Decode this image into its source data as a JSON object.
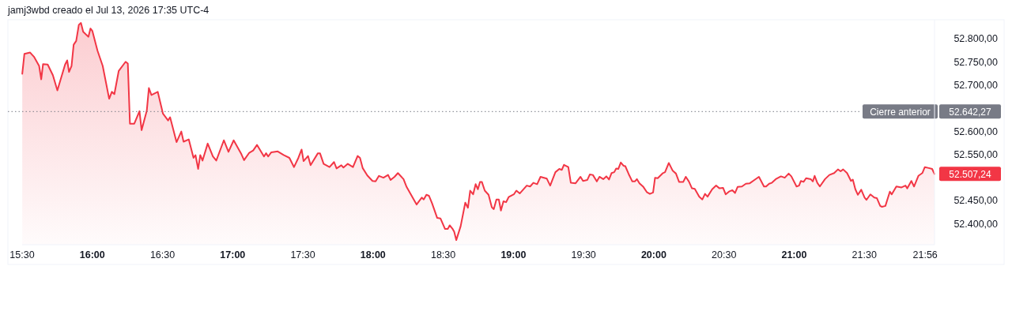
{
  "chart_data": {
    "type": "area",
    "title": "jamj3wbd creado el Jul 13, 2026 17:35 UTC-4",
    "xlim": [
      15.5,
      22.0
    ],
    "xticks": [
      {
        "value": 15.5,
        "label": "15:30"
      },
      {
        "value": 16,
        "label": "16:00"
      },
      {
        "value": 16.5,
        "label": "16:30"
      },
      {
        "value": 17,
        "label": "17:00"
      },
      {
        "value": 17.5,
        "label": "17:30"
      },
      {
        "value": 18,
        "label": "18:00"
      },
      {
        "value": 18.5,
        "label": "18:30"
      },
      {
        "value": 19,
        "label": "19:00"
      },
      {
        "value": 19.5,
        "label": "19:30"
      },
      {
        "value": 20,
        "label": "20:00"
      },
      {
        "value": 20.5,
        "label": "20:30"
      },
      {
        "value": 21,
        "label": "21:00"
      },
      {
        "value": 21.5,
        "label": "21:30"
      },
      {
        "value": 21.9333,
        "label": "21:56"
      }
    ],
    "ylim": [
      52354,
      52841
    ],
    "yticks": [
      {
        "value": 52400,
        "label": "52.400,00"
      },
      {
        "value": 52450,
        "label": "52.450,00"
      },
      {
        "value": 52550,
        "label": "52.550,00"
      },
      {
        "value": 52600,
        "label": "52.600,00"
      },
      {
        "value": 52700,
        "label": "52.700,00"
      },
      {
        "value": 52750,
        "label": "52.750,00"
      },
      {
        "value": 52800,
        "label": "52.800,00"
      }
    ],
    "ref_lines": [
      {
        "axis": "y",
        "value": 52642.27,
        "label": "Cierre anterior",
        "color": "#787b86",
        "line_style": "dotted"
      }
    ],
    "annotations": [
      "52.642,27",
      {
        "text": "52.507,24",
        "x": 22.0,
        "y": 52507.24
      }
    ],
    "series": [
      {
        "color": "#f23645",
        "x": [
          15.501,
          15.516,
          15.557,
          15.584,
          15.621,
          15.636,
          15.649,
          15.682,
          15.719,
          15.751,
          15.806,
          15.821,
          15.834,
          15.852,
          15.867,
          15.885,
          15.904,
          15.919,
          15.935,
          15.972,
          15.987,
          16.0,
          16.037,
          16.074,
          16.12,
          16.139,
          16.157,
          16.188,
          16.237,
          16.253,
          16.268,
          16.299,
          16.336,
          16.351,
          16.388,
          16.403,
          16.421,
          16.466,
          16.503,
          16.54,
          16.554,
          16.6,
          16.634,
          16.65,
          16.687,
          16.721,
          16.735,
          16.754,
          16.769,
          16.785,
          16.822,
          16.859,
          16.883,
          16.937,
          16.97,
          17.007,
          17.062,
          17.081,
          17.118,
          17.146,
          17.173,
          17.223,
          17.238,
          17.253,
          17.275,
          17.321,
          17.363,
          17.404,
          17.437,
          17.468,
          17.491,
          17.505,
          17.537,
          17.555,
          17.607,
          17.622,
          17.648,
          17.69,
          17.722,
          17.74,
          17.774,
          17.789,
          17.82,
          17.857,
          17.89,
          17.907,
          17.926,
          17.959,
          17.996,
          18.018,
          18.042,
          18.074,
          18.107,
          18.125,
          18.153,
          18.177,
          18.217,
          18.239,
          18.282,
          18.31,
          18.347,
          18.361,
          18.38,
          18.398,
          18.42,
          18.457,
          18.48,
          18.513,
          18.532,
          18.546,
          18.565,
          18.578,
          18.593,
          18.624,
          18.657,
          18.676,
          18.692,
          18.713,
          18.731,
          18.747,
          18.762,
          18.775,
          18.796,
          18.823,
          18.846,
          18.86,
          18.879,
          18.896,
          18.911,
          18.929,
          18.948,
          18.966,
          19.003,
          19.021,
          19.045,
          19.095,
          19.119,
          19.142,
          19.169,
          19.193,
          19.238,
          19.262,
          19.299,
          19.327,
          19.345,
          19.36,
          19.391,
          19.409,
          19.443,
          19.478,
          19.496,
          19.526,
          19.544,
          19.566,
          19.594,
          19.613,
          19.64,
          19.662,
          19.681,
          19.699,
          19.718,
          19.732,
          19.747,
          19.765,
          19.784,
          19.797,
          19.821,
          19.847,
          19.865,
          19.88,
          19.898,
          19.926,
          19.95,
          19.972,
          19.995,
          20.009,
          20.028,
          20.065,
          20.08,
          20.107,
          20.135,
          20.158,
          20.18,
          20.21,
          20.228,
          20.25,
          20.272,
          20.292,
          20.324,
          20.346,
          20.365,
          20.383,
          20.416,
          20.444,
          20.468,
          20.494,
          20.512,
          20.536,
          20.56,
          20.579,
          20.597,
          20.628,
          20.656,
          20.684,
          20.721,
          20.749,
          20.785,
          20.8,
          20.822,
          20.841,
          20.869,
          20.906,
          20.933,
          20.961,
          20.98,
          21.017,
          21.035,
          21.048,
          21.067,
          21.085,
          21.118,
          21.133,
          21.146,
          21.165,
          21.183,
          21.22,
          21.251,
          21.285,
          21.312,
          21.331,
          21.349,
          21.377,
          21.405,
          21.418,
          21.436,
          21.454,
          21.478,
          21.502,
          21.515,
          21.543,
          21.571,
          21.589,
          21.613,
          21.626,
          21.65,
          21.682,
          21.695,
          21.728,
          21.765,
          21.793,
          21.806,
          21.835,
          21.854,
          21.885,
          21.913,
          21.931,
          21.959,
          21.983,
          22.0
        ],
        "values": [
          52724,
          52767,
          52770,
          52761,
          52741,
          52712,
          52745,
          52744,
          52721,
          52688,
          52744,
          52753,
          52728,
          52741,
          52787,
          52795,
          52830,
          52834,
          52815,
          52804,
          52822,
          52817,
          52774,
          52741,
          52670,
          52685,
          52680,
          52730,
          52750,
          52746,
          52616,
          52616,
          52643,
          52602,
          52644,
          52693,
          52678,
          52685,
          52638,
          52623,
          52630,
          52576,
          52599,
          52577,
          52582,
          52542,
          52548,
          52518,
          52548,
          52536,
          52573,
          52545,
          52536,
          52580,
          52555,
          52580,
          52550,
          52537,
          52553,
          52558,
          52570,
          52545,
          52552,
          52545,
          52554,
          52556,
          52548,
          52542,
          52522,
          52542,
          52560,
          52535,
          52546,
          52526,
          52552,
          52552,
          52529,
          52522,
          52533,
          52519,
          52526,
          52521,
          52529,
          52522,
          52546,
          52542,
          52520,
          52504,
          52492,
          52491,
          52503,
          52499,
          52505,
          52494,
          52501,
          52509,
          52496,
          52479,
          52456,
          52441,
          52456,
          52452,
          52462,
          52460,
          52444,
          52412,
          52411,
          52388,
          52388,
          52396,
          52389,
          52382,
          52364,
          52394,
          52445,
          52434,
          52471,
          52463,
          52485,
          52474,
          52490,
          52490,
          52471,
          52462,
          52435,
          52431,
          52452,
          52452,
          52428,
          52448,
          52446,
          52457,
          52463,
          52471,
          52465,
          52482,
          52480,
          52488,
          52485,
          52501,
          52497,
          52482,
          52511,
          52518,
          52516,
          52527,
          52522,
          52488,
          52487,
          52501,
          52492,
          52494,
          52506,
          52505,
          52491,
          52501,
          52496,
          52502,
          52495,
          52509,
          52511,
          52519,
          52518,
          52532,
          52525,
          52524,
          52507,
          52491,
          52491,
          52496,
          52487,
          52479,
          52468,
          52464,
          52467,
          52499,
          52498,
          52509,
          52511,
          52531,
          52514,
          52508,
          52490,
          52490,
          52501,
          52491,
          52476,
          52475,
          52458,
          52452,
          52464,
          52458,
          52474,
          52482,
          52476,
          52477,
          52463,
          52469,
          52472,
          52466,
          52479,
          52480,
          52486,
          52487,
          52495,
          52501,
          52480,
          52480,
          52486,
          52488,
          52496,
          52502,
          52499,
          52508,
          52502,
          52480,
          52482,
          52492,
          52490,
          52498,
          52496,
          52491,
          52503,
          52488,
          52480,
          52496,
          52505,
          52509,
          52517,
          52513,
          52517,
          52509,
          52492,
          52495,
          52474,
          52462,
          52473,
          52456,
          52451,
          52463,
          52456,
          52455,
          52438,
          52436,
          52438,
          52469,
          52463,
          52480,
          52478,
          52482,
          52476,
          52492,
          52480,
          52503,
          52509,
          52522,
          52520,
          52518,
          52507
        ]
      }
    ]
  }
}
